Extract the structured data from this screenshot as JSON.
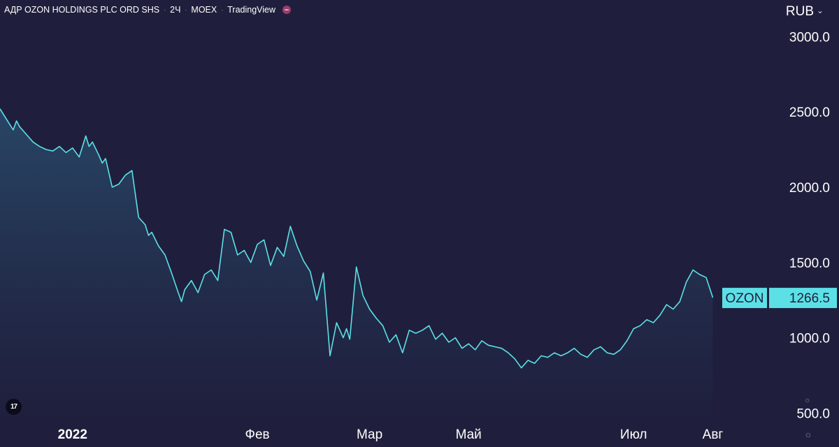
{
  "header": {
    "instrument": "АДР OZON HOLDINGS PLC ORD SHS",
    "interval": "2Ч",
    "exchange": "MOEX",
    "source": "TradingView",
    "separator": "·"
  },
  "currency": "RUB",
  "colors": {
    "background": "#1f1f3d",
    "line": "#5ce0e6",
    "label_bg": "#5ce0e6",
    "label_text": "#1f1f3d"
  },
  "icons": [
    "tradingview-logo-icon",
    "chevron-down-icon",
    "settings-icon"
  ],
  "tv_logo_text": "17",
  "chart_data": {
    "type": "area",
    "symbol": "OZON",
    "last_value": "1266.5",
    "y_ticks": [
      "3000.0",
      "2500.0",
      "2000.0",
      "1500.0",
      "1000.0",
      "500.0"
    ],
    "y_tick_values": [
      3000,
      2500,
      2000,
      1500,
      1000,
      500
    ],
    "x_ticks": [
      "2022",
      "Фев",
      "Мар",
      "Май",
      "Июл",
      "Авг"
    ],
    "x_tick_positions": [
      0.1,
      2.9,
      4.6,
      6.1,
      8.6,
      9.8
    ],
    "xlim": [
      -1.0,
      10.6
    ],
    "ylim": [
      460,
      3150
    ],
    "x": [
      -1.0,
      -0.9,
      -0.8,
      -0.75,
      -0.7,
      -0.6,
      -0.5,
      -0.4,
      -0.3,
      -0.2,
      -0.1,
      0.0,
      0.1,
      0.2,
      0.3,
      0.35,
      0.4,
      0.5,
      0.55,
      0.6,
      0.7,
      0.8,
      0.9,
      1.0,
      1.1,
      1.2,
      1.25,
      1.3,
      1.4,
      1.5,
      1.6,
      1.7,
      1.75,
      1.8,
      1.9,
      2.0,
      2.1,
      2.2,
      2.3,
      2.4,
      2.5,
      2.6,
      2.7,
      2.8,
      2.9,
      3.0,
      3.1,
      3.2,
      3.3,
      3.4,
      3.5,
      3.6,
      3.7,
      3.8,
      3.9,
      4.0,
      4.1,
      4.2,
      4.25,
      4.3,
      4.4,
      4.5,
      4.6,
      4.7,
      4.8,
      4.9,
      5.0,
      5.1,
      5.2,
      5.3,
      5.4,
      5.5,
      5.6,
      5.7,
      5.8,
      5.9,
      6.0,
      6.1,
      6.2,
      6.3,
      6.4,
      6.5,
      6.6,
      6.7,
      6.8,
      6.9,
      7.0,
      7.1,
      7.2,
      7.3,
      7.4,
      7.5,
      7.6,
      7.7,
      7.8,
      7.9,
      8.0,
      8.1,
      8.2,
      8.3,
      8.4,
      8.5,
      8.6,
      8.7,
      8.8,
      8.9,
      9.0,
      9.1,
      9.2,
      9.3,
      9.4,
      9.5,
      9.6,
      9.7,
      9.8
    ],
    "values": [
      2520,
      2450,
      2380,
      2440,
      2400,
      2350,
      2300,
      2270,
      2250,
      2240,
      2270,
      2230,
      2260,
      2200,
      2340,
      2270,
      2300,
      2210,
      2160,
      2190,
      2000,
      2020,
      2080,
      2110,
      1800,
      1750,
      1680,
      1700,
      1610,
      1550,
      1430,
      1300,
      1240,
      1320,
      1380,
      1300,
      1420,
      1450,
      1380,
      1720,
      1700,
      1550,
      1580,
      1500,
      1620,
      1650,
      1480,
      1600,
      1540,
      1740,
      1610,
      1510,
      1440,
      1250,
      1430,
      880,
      1100,
      1000,
      1060,
      990,
      1470,
      1280,
      1190,
      1130,
      1080,
      970,
      1020,
      900,
      1050,
      1030,
      1050,
      1080,
      990,
      1030,
      970,
      1000,
      930,
      960,
      920,
      980,
      950,
      940,
      930,
      900,
      860,
      800,
      850,
      830,
      880,
      870,
      900,
      880,
      900,
      930,
      890,
      870,
      920,
      940,
      900,
      890,
      920,
      980,
      1060,
      1080,
      1120,
      1100,
      1150,
      1220,
      1190,
      1240,
      1370,
      1450,
      1420,
      1400,
      1266.5
    ]
  }
}
